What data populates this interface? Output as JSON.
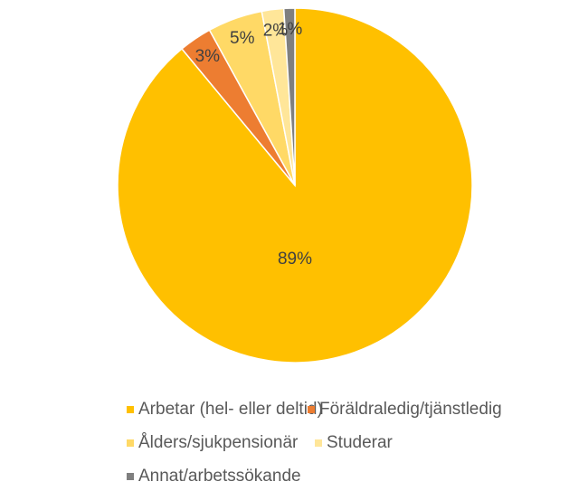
{
  "chart_data": {
    "type": "pie",
    "categories": [
      "Arbetar (hel- eller deltid)",
      "Föräldraledig/tjänstledig",
      "Ålders/sjukpensionär",
      "Studerar",
      "Annat/arbetssökande"
    ],
    "values": [
      89,
      3,
      5,
      2,
      1
    ],
    "value_labels": [
      "89%",
      "3%",
      "5%",
      "2%",
      "1%"
    ],
    "colors": [
      "#FFC000",
      "#ED7D31",
      "#FFD966",
      "#FFE699",
      "#7F7F7F"
    ],
    "legend": "bottom"
  }
}
